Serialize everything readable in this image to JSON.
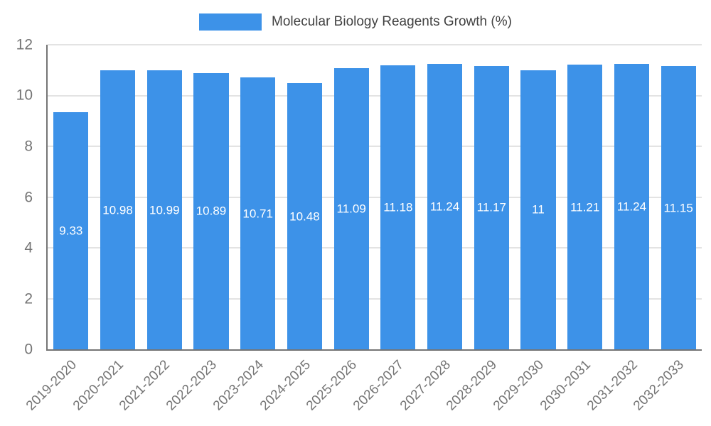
{
  "chart_data": {
    "type": "bar",
    "title": "Molecular Biology Reagents Growth (%)",
    "categories": [
      "2019-2020",
      "2020-2021",
      "2021-2022",
      "2022-2023",
      "2023-2024",
      "2024-2025",
      "2025-2026",
      "2026-2027",
      "2027-2028",
      "2028-2029",
      "2029-2030",
      "2030-2031",
      "2031-2032",
      "2032-2033"
    ],
    "values": [
      9.33,
      10.98,
      10.99,
      10.89,
      10.71,
      10.48,
      11.09,
      11.18,
      11.24,
      11.17,
      11,
      11.21,
      11.24,
      11.15
    ],
    "value_labels": [
      "9.33",
      "10.98",
      "10.99",
      "10.89",
      "10.71",
      "10.48",
      "11.09",
      "11.18",
      "11.24",
      "11.17",
      "11",
      "11.21",
      "11.24",
      "11.15"
    ],
    "xlabel": "",
    "ylabel": "",
    "ylim": [
      0,
      12
    ],
    "yticks": [
      0,
      2,
      4,
      6,
      8,
      10,
      12
    ],
    "grid": true,
    "legend_position": "top-center",
    "colors": {
      "bar": "#3D92E8",
      "value_label": "#FFFFFF",
      "axis_text": "#757575",
      "title_text": "#424242",
      "gridline": "#E3E3E3",
      "axis_line": "#757575",
      "background": "#FFFFFF"
    }
  }
}
